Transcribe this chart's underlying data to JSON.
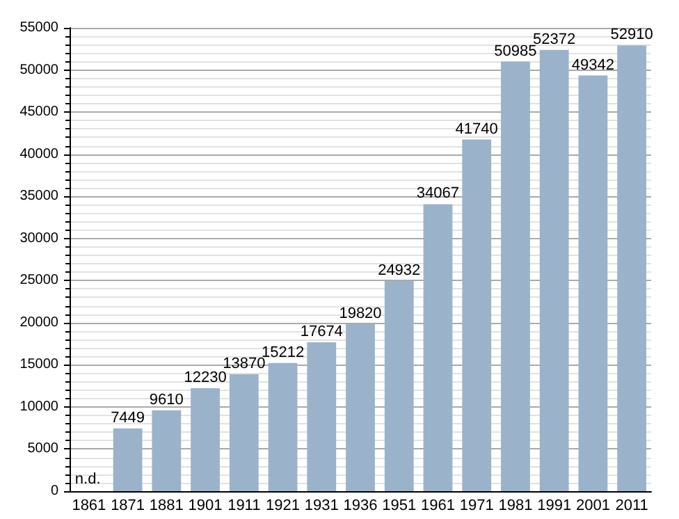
{
  "chart_data": {
    "type": "bar",
    "categories": [
      "1861",
      "1871",
      "1881",
      "1901",
      "1911",
      "1921",
      "1931",
      "1936",
      "1951",
      "1961",
      "1971",
      "1981",
      "1991",
      "2001",
      "2011"
    ],
    "values": [
      null,
      7449,
      9610,
      12230,
      13870,
      15212,
      17674,
      19820,
      24932,
      34067,
      41740,
      50985,
      52372,
      49342,
      52910
    ],
    "value_labels": [
      "n.d.",
      "7449",
      "9610",
      "12230",
      "13870",
      "15212",
      "17674",
      "19820",
      "24932",
      "34067",
      "41740",
      "50985",
      "52372",
      "49342",
      "52910"
    ],
    "color": "#9bb2cb",
    "ylim": [
      0,
      55000
    ],
    "yticks": [
      0,
      5000,
      10000,
      15000,
      20000,
      25000,
      30000,
      35000,
      40000,
      45000,
      50000,
      55000
    ],
    "grid": "y"
  }
}
